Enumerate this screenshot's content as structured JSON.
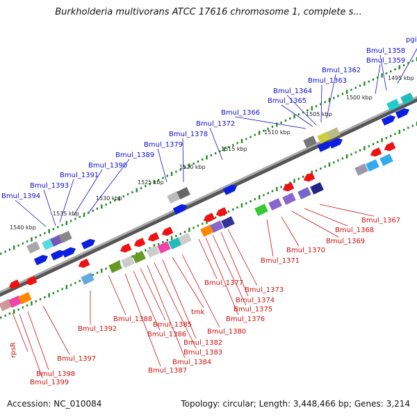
{
  "title": "Burkholderia multivorans ATCC 17616 chromosome 1, complete s...",
  "footer": {
    "accession": "Accession: NC_010084",
    "stats": "Topology: circular; Length: 3,448,466 bp; Genes: 3,214"
  },
  "colors": {
    "upper_label": "#1010cc",
    "lower_label": "#cc1010",
    "tick": "#228822",
    "backbone": "#777777"
  },
  "scale_labels": [
    "1495 kbp",
    "1500 kbp",
    "1505 kbp",
    "1510 kbp",
    "1515 kbp",
    "1520 kbp",
    "1525 kbp",
    "1530 kbp",
    "1535 kbp",
    "1540 kbp"
  ],
  "upper_gene_labels": [
    "pgi",
    "Bmul_1358",
    "Bmul_1359",
    "Bmul_1362",
    "Bmul_1363",
    "Bmul_1364",
    "Bmul_1365",
    "Bmul_1366",
    "Bmul_1372",
    "Bmul_1378",
    "Bmul_1379",
    "Bmul_1389",
    "Bmul_1390",
    "Bmul_1391",
    "Bmul_1393",
    "Bmul_1394"
  ],
  "lower_gene_labels": [
    "Bmul_1367",
    "Bmul_1368",
    "Bmul_1369",
    "Bmul_1370",
    "Bmul_1371",
    "Bmul_1373",
    "Bmul_1374",
    "Bmul_1375",
    "Bmul_1376",
    "Bmul_1377",
    "Bmul_1380",
    "tmk",
    "Bmul_1382",
    "Bmul_1383",
    "Bmul_1384",
    "Bmul_1385",
    "Bmul_1386",
    "Bmul_1387",
    "Bmul_1388",
    "Bmul_1392",
    "Bmul_1397",
    "Bmul_1398",
    "Bmul_1399",
    "rpsR"
  ]
}
